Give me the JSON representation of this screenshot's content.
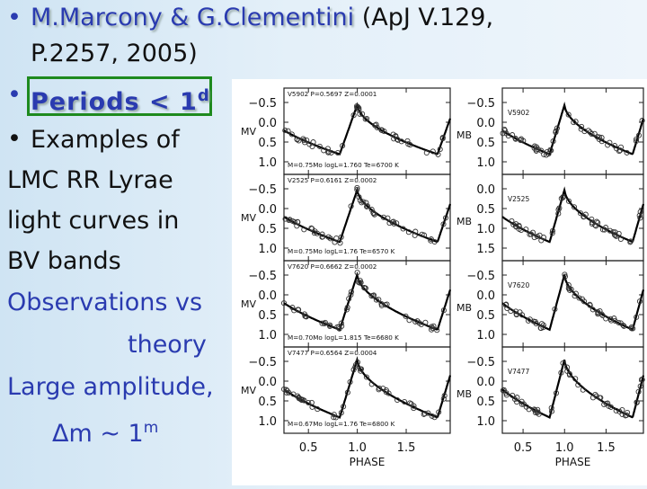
{
  "bullets": {
    "b1_part1": "M.Marcony & G.Clementini",
    "b1_part2": " (ApJ V.129,",
    "b1_line2": "P.2257, 2005)",
    "b2": "Periods < 1",
    "b2_sup": "d",
    "b3": "Examples of",
    "l4": "LMC RR Lyrae",
    "l5": "light curves in",
    "l6": "BV bands",
    "l7": "Observations vs",
    "l8": "theory",
    "l9": "Large amplitude,",
    "l10_main": "Δm ~ 1",
    "l10_sup": "m",
    "bullet_char": "•"
  },
  "figure": {
    "xlabel": "PHASE",
    "x_ticks": [
      "0.5",
      "1.0",
      "1.5"
    ],
    "left_ylabel": "MV",
    "right_ylabel": "MB",
    "left_panels": [
      {
        "id": "V5902",
        "header": "V5902  P=0.5697  Z=0.0001",
        "footer": "M=0.75Mo  logL=1.760  Te=6700  K",
        "yticks": [
          "−0.5",
          "0.0",
          "0.5",
          "1.0"
        ]
      },
      {
        "id": "V2525",
        "header": "V2525  P=0.6161  Z=0.0002",
        "footer": "M=0.75Mo  logL=1.76  Te=6570  K",
        "yticks": [
          "−0.5",
          "0.0",
          "0.5",
          "1.0"
        ]
      },
      {
        "id": "V7620",
        "header": "V7620  P=0.6662  Z=0.0002",
        "footer": "M=0.70Mo  logL=1.815  Te=6680  K",
        "yticks": [
          "−0.5",
          "0.0",
          "0.5",
          "1.0"
        ]
      },
      {
        "id": "V7477",
        "header": "V7477  P=0.6564  Z=0.0004",
        "footer": "M=0.67Mo  logL=1.76  Te=6800  K",
        "yticks": [
          "−0.5",
          "0.0",
          "0.5",
          "1.0"
        ]
      }
    ],
    "right_panels": [
      {
        "id": "V5902",
        "yticks": [
          "−0.5",
          "0.0",
          "0.5",
          "1.0"
        ]
      },
      {
        "id": "V2525",
        "yticks": [
          "0.0",
          "0.5",
          "1.0",
          "1.5"
        ]
      },
      {
        "id": "V7620",
        "yticks": [
          "−0.5",
          "0.0",
          "0.5",
          "1.0"
        ]
      },
      {
        "id": "V7477",
        "yticks": [
          "−0.5",
          "0.0",
          "0.5",
          "1.0"
        ]
      }
    ]
  }
}
